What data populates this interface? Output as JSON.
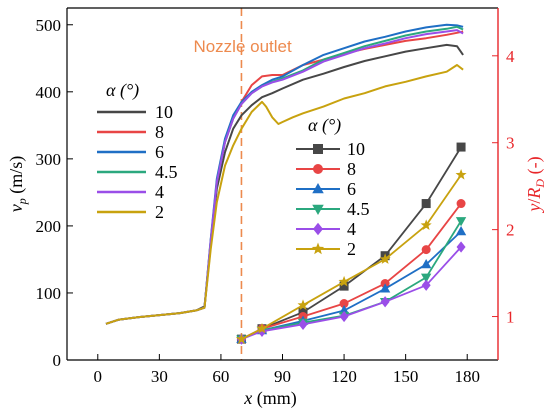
{
  "chart_data": {
    "type": "line",
    "annotation": {
      "text": "Nozzle outlet",
      "x": 70,
      "color": "#ed8a4e"
    },
    "x_axis": {
      "label": "x (mm)",
      "min": -15,
      "max": 195,
      "ticks": [
        0,
        30,
        60,
        90,
        120,
        150,
        180
      ]
    },
    "y_left": {
      "label": "v_p (m/s)",
      "min": 0,
      "max": 525,
      "ticks": [
        0,
        100,
        200,
        300,
        400,
        500
      ]
    },
    "y_right": {
      "label": "y/R_D (-)",
      "min": 0.5,
      "max": 4.55,
      "ticks": [
        1,
        2,
        3,
        4
      ],
      "color": "#e8262a"
    },
    "legend_velocity": {
      "title": "α (°)",
      "entries": [
        "10",
        "8",
        "6",
        "4.5",
        "4",
        "2"
      ]
    },
    "legend_ratio": {
      "title": "α (°)",
      "entries": [
        "10",
        "8",
        "6",
        "4.5",
        "4",
        "2"
      ]
    },
    "colors": [
      "#474747",
      "#e84545",
      "#1f6fc5",
      "#2ba87e",
      "#9a4ee8",
      "#c8a20f"
    ],
    "markers": [
      "square",
      "circle",
      "triangle-up",
      "triangle-down",
      "diamond",
      "star"
    ],
    "velocity_series": [
      {
        "name": "10",
        "x": [
          4,
          10,
          20,
          30,
          40,
          48,
          52,
          55,
          58,
          62,
          66,
          70,
          75,
          80,
          85,
          90,
          100,
          110,
          120,
          130,
          140,
          150,
          160,
          170,
          175,
          178
        ],
        "y": [
          54,
          60,
          64,
          67,
          70,
          74,
          80,
          170,
          255,
          310,
          345,
          365,
          380,
          392,
          398,
          405,
          418,
          427,
          437,
          446,
          453,
          460,
          465,
          470,
          468,
          455
        ]
      },
      {
        "name": "8",
        "x": [
          4,
          10,
          20,
          30,
          40,
          48,
          52,
          55,
          58,
          62,
          66,
          70,
          75,
          80,
          85,
          90,
          100,
          110,
          120,
          130,
          140,
          150,
          160,
          170,
          175,
          178
        ],
        "y": [
          54,
          60,
          64,
          67,
          70,
          74,
          78,
          175,
          265,
          325,
          360,
          385,
          410,
          423,
          425,
          425,
          440,
          448,
          457,
          464,
          470,
          476,
          480,
          485,
          488,
          490
        ]
      },
      {
        "name": "6",
        "x": [
          4,
          10,
          20,
          30,
          40,
          48,
          52,
          55,
          58,
          62,
          66,
          70,
          75,
          80,
          85,
          90,
          100,
          110,
          120,
          130,
          140,
          150,
          160,
          170,
          175,
          178
        ],
        "y": [
          54,
          60,
          64,
          67,
          70,
          74,
          78,
          180,
          270,
          330,
          365,
          385,
          400,
          410,
          418,
          423,
          440,
          455,
          465,
          475,
          482,
          490,
          496,
          500,
          499,
          497
        ]
      },
      {
        "name": "4.5",
        "x": [
          4,
          10,
          20,
          30,
          40,
          48,
          52,
          55,
          58,
          62,
          66,
          70,
          75,
          80,
          85,
          90,
          100,
          110,
          120,
          130,
          140,
          150,
          160,
          170,
          175,
          178
        ],
        "y": [
          54,
          60,
          64,
          67,
          70,
          74,
          78,
          178,
          265,
          325,
          360,
          382,
          398,
          408,
          415,
          420,
          432,
          448,
          458,
          468,
          476,
          484,
          490,
          494,
          497,
          493
        ]
      },
      {
        "name": "4",
        "x": [
          4,
          10,
          20,
          30,
          40,
          48,
          52,
          55,
          58,
          62,
          66,
          70,
          75,
          80,
          85,
          90,
          100,
          110,
          120,
          130,
          140,
          150,
          160,
          170,
          175,
          178
        ],
        "y": [
          54,
          60,
          64,
          67,
          70,
          74,
          78,
          178,
          265,
          325,
          360,
          382,
          398,
          408,
          414,
          418,
          430,
          445,
          455,
          465,
          472,
          480,
          486,
          490,
          492,
          487
        ]
      },
      {
        "name": "2",
        "x": [
          4,
          10,
          20,
          30,
          40,
          48,
          52,
          55,
          58,
          62,
          66,
          70,
          75,
          80,
          82,
          85,
          88,
          90,
          95,
          100,
          110,
          120,
          130,
          140,
          150,
          160,
          170,
          175,
          178
        ],
        "y": [
          54,
          60,
          64,
          67,
          70,
          74,
          78,
          165,
          235,
          290,
          320,
          345,
          370,
          385,
          378,
          362,
          352,
          355,
          362,
          368,
          378,
          390,
          398,
          408,
          415,
          423,
          430,
          440,
          433
        ]
      }
    ],
    "ratio_series": [
      {
        "name": "10",
        "x": [
          70,
          80,
          100,
          120,
          140,
          160,
          177
        ],
        "y": [
          0.74,
          0.86,
          1.05,
          1.35,
          1.7,
          2.3,
          2.95
        ]
      },
      {
        "name": "8",
        "x": [
          70,
          80,
          100,
          120,
          140,
          160,
          177
        ],
        "y": [
          0.74,
          0.86,
          1.0,
          1.15,
          1.38,
          1.77,
          2.3
        ]
      },
      {
        "name": "6",
        "x": [
          70,
          80,
          100,
          120,
          140,
          160,
          177
        ],
        "y": [
          0.74,
          0.84,
          0.95,
          1.07,
          1.32,
          1.6,
          1.98
        ]
      },
      {
        "name": "4.5",
        "x": [
          70,
          80,
          100,
          120,
          140,
          160,
          177
        ],
        "y": [
          0.74,
          0.84,
          0.93,
          1.01,
          1.17,
          1.45,
          2.1
        ]
      },
      {
        "name": "4",
        "x": [
          70,
          80,
          100,
          120,
          140,
          160,
          177
        ],
        "y": [
          0.74,
          0.83,
          0.91,
          1.0,
          1.17,
          1.36,
          1.8
        ]
      },
      {
        "name": "2",
        "x": [
          70,
          80,
          100,
          120,
          140,
          160,
          177
        ],
        "y": [
          0.74,
          0.86,
          1.13,
          1.4,
          1.66,
          2.05,
          2.63
        ]
      }
    ]
  }
}
